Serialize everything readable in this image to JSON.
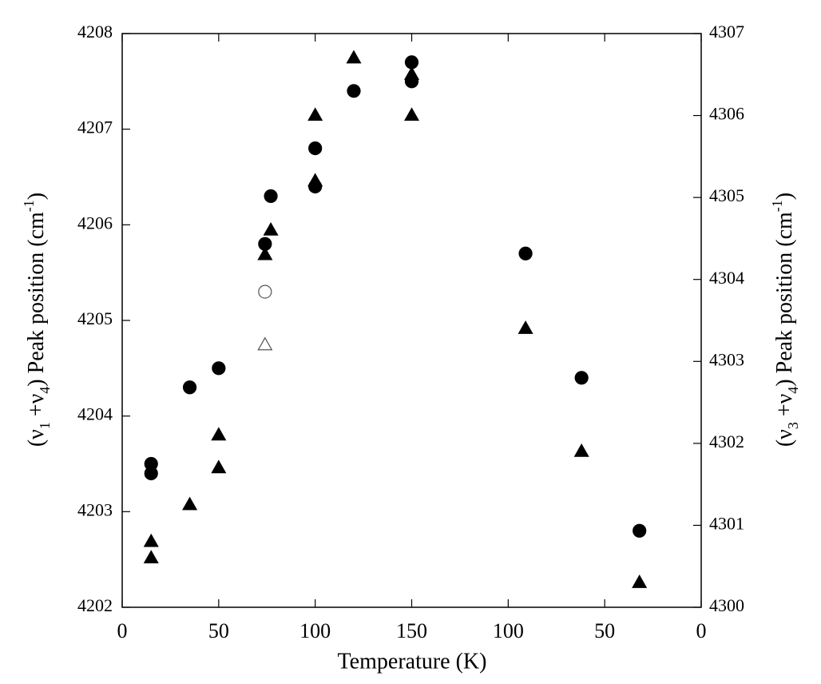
{
  "chart_data": {
    "type": "scatter",
    "xlabel": "Temperature (K)",
    "ylabel": [
      "(ν",
      "1",
      " +ν",
      "4",
      ") Peak position (cm",
      "-1",
      ")"
    ],
    "y2label": [
      "(ν",
      "3",
      " +ν",
      "4",
      ") Peak position (cm",
      "-1",
      ")"
    ],
    "xlim": [
      0,
      300
    ],
    "xticks": [
      0,
      50,
      100,
      150,
      {
        "value": 200,
        "label": "100"
      },
      {
        "value": 250,
        "label": "50"
      },
      {
        "value": 300,
        "label": "0"
      }
    ],
    "ylim": [
      4202,
      4208
    ],
    "yticks": [
      4202,
      4203,
      4204,
      4205,
      4206,
      4207,
      4208
    ],
    "y2lim": [
      4300,
      4307
    ],
    "y2ticks": [
      4300,
      4301,
      4302,
      4303,
      4304,
      4305,
      4306,
      4307
    ],
    "series": [
      {
        "marker": "circle",
        "filled": true,
        "color": "#000000",
        "x": [
          15,
          15,
          35,
          50,
          74,
          77,
          100,
          100,
          120,
          150,
          150,
          209,
          238,
          268
        ],
        "values": [
          4203.5,
          4203.4,
          4204.3,
          4204.5,
          4205.8,
          4206.3,
          4206.8,
          4206.4,
          4207.4,
          4207.7,
          4207.5,
          4205.7,
          4204.4,
          4202.8
        ]
      },
      {
        "marker": "circle",
        "filled": false,
        "color": "#000000",
        "x": [
          74
        ],
        "values": [
          4205.3
        ]
      },
      {
        "marker": "triangle",
        "filled": true,
        "color": "#000000",
        "axis": "y2",
        "x": [
          15,
          15,
          35,
          50,
          50,
          74,
          77,
          100,
          100,
          120,
          150,
          150,
          209,
          238,
          268
        ],
        "values": [
          4300.6,
          4300.8,
          4301.25,
          4301.7,
          4302.1,
          4304.3,
          4304.6,
          4305.2,
          4306.0,
          4306.7,
          4306.5,
          4306.0,
          4303.4,
          4301.9,
          4300.3
        ]
      },
      {
        "marker": "triangle",
        "filled": false,
        "color": "#000000",
        "axis": "y2",
        "x": [
          74
        ],
        "values": [
          4303.2
        ]
      }
    ]
  }
}
